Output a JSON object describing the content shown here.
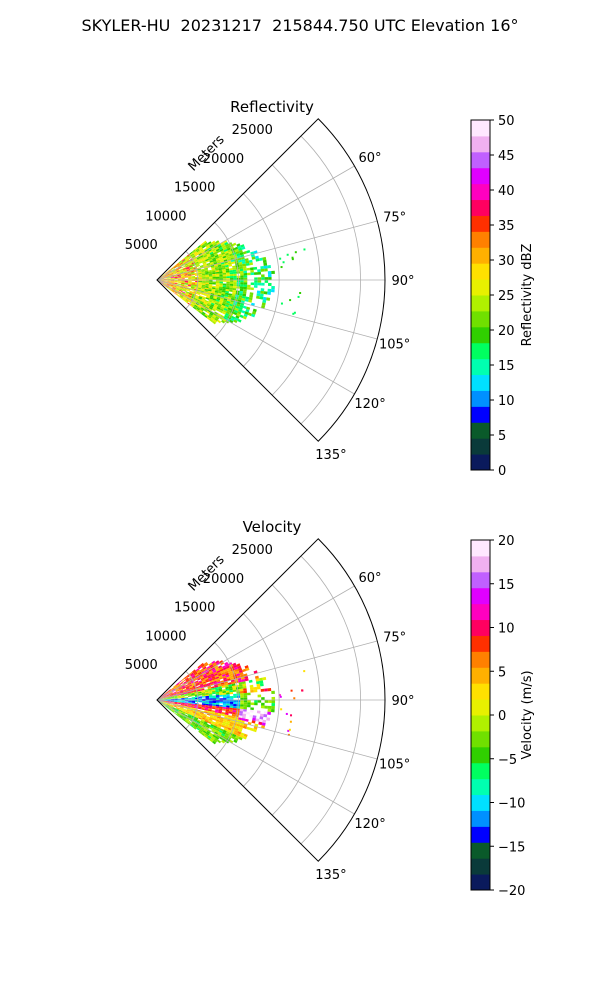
{
  "figure": {
    "title": "SKYLER-HU  20231217  215844.750 UTC Elevation 16°"
  },
  "chart_data": [
    {
      "type": "heatmap",
      "projection": "polar-sector",
      "title": "Reflectivity",
      "radial_label": "Meters",
      "radial_ticks": [
        "5000",
        "10000",
        "15000",
        "20000",
        "25000"
      ],
      "radial_range": [
        0,
        28000
      ],
      "angle_range_deg": [
        45,
        135
      ],
      "angle_ticks": [
        "60°",
        "75°",
        "90°",
        "105°",
        "120°",
        "135°"
      ],
      "grid": true,
      "colorbar": {
        "label": "Reflectivity dBZ",
        "range": [
          0,
          50
        ],
        "ticks": [
          "0",
          "5",
          "10",
          "15",
          "20",
          "25",
          "30",
          "35",
          "40",
          "45",
          "50"
        ],
        "colors": [
          "#0a1a5c",
          "#0a3a3a",
          "#0a5a2a",
          "#0000ff",
          "#0090ff",
          "#00e0ff",
          "#00ffb0",
          "#00ff60",
          "#30d000",
          "#70e000",
          "#b0f000",
          "#e8f000",
          "#ffe000",
          "#ffb000",
          "#ff8000",
          "#ff3000",
          "#ff0060",
          "#ff00c0",
          "#e000ff",
          "#c060ff",
          "#f0b0f0",
          "#ffe8ff"
        ]
      }
    },
    {
      "type": "heatmap",
      "projection": "polar-sector",
      "title": "Velocity",
      "radial_label": "Meters",
      "radial_ticks": [
        "5000",
        "10000",
        "15000",
        "20000",
        "25000"
      ],
      "radial_range": [
        0,
        28000
      ],
      "angle_range_deg": [
        45,
        135
      ],
      "angle_ticks": [
        "60°",
        "75°",
        "90°",
        "105°",
        "120°",
        "135°"
      ],
      "grid": true,
      "colorbar": {
        "label": "Velocity (m/s)",
        "range": [
          -20,
          20
        ],
        "ticks": [
          "−20",
          "−15",
          "−10",
          "−5",
          "0",
          "5",
          "10",
          "15",
          "20"
        ],
        "colors": [
          "#0a1a5c",
          "#0a3a3a",
          "#0a5a2a",
          "#0000ff",
          "#0090ff",
          "#00e0ff",
          "#00ffb0",
          "#00ff60",
          "#30d000",
          "#70e000",
          "#b0f000",
          "#e8f000",
          "#ffe000",
          "#ffb000",
          "#ff8000",
          "#ff3000",
          "#ff0060",
          "#ff00c0",
          "#e000ff",
          "#c060ff",
          "#f0b0f0",
          "#ffe8ff"
        ]
      }
    }
  ]
}
